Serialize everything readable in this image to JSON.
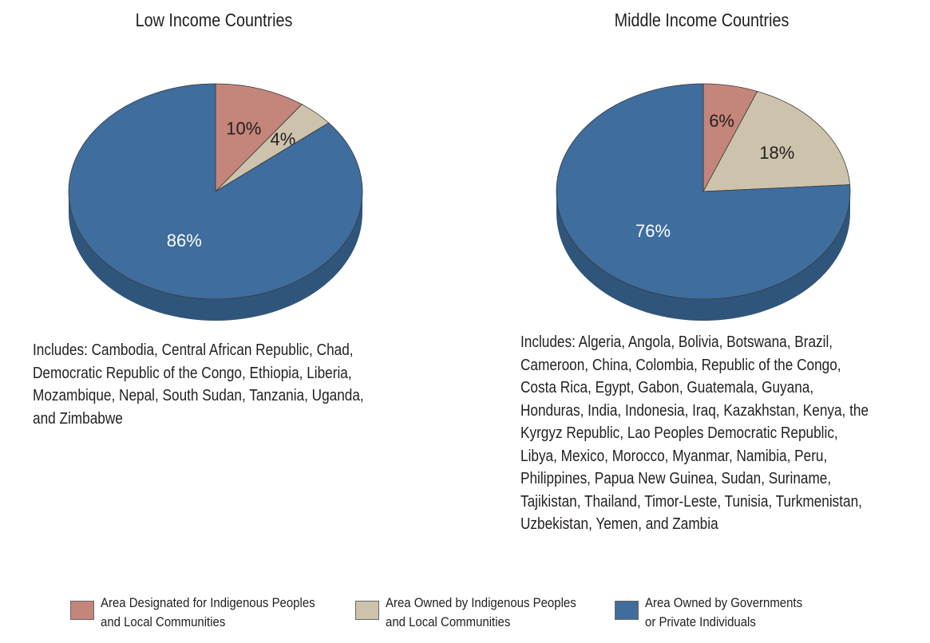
{
  "chart_data": [
    {
      "type": "pie",
      "title": "Low Income Countries",
      "categories": [
        "Area Designated for Indigenous Peoples and Local Communities",
        "Area Owned by Indigenous Peoples and Local Communities",
        "Area Owned by Governments or Private Individuals"
      ],
      "values": [
        10,
        4,
        86
      ],
      "labels": [
        "10%",
        "4%",
        "86%"
      ],
      "colors": [
        "#c4857a",
        "#cdc3ac",
        "#3e6d9e"
      ],
      "note": "Includes: Cambodia, Central African Republic, Chad, Democratic Republic of the Congo, Ethiopia, Liberia, Mozambique, Nepal, South Sudan, Tanzania, Uganda, and Zimbabwe"
    },
    {
      "type": "pie",
      "title": "Middle Income Countries",
      "categories": [
        "Area Designated for Indigenous Peoples and Local Communities",
        "Area Owned by Indigenous Peoples and Local Communities",
        "Area Owned by Governments or Private Individuals"
      ],
      "values": [
        6,
        18,
        76
      ],
      "labels": [
        "6%",
        "18%",
        "76%"
      ],
      "colors": [
        "#c4857a",
        "#cdc3ac",
        "#3e6d9e"
      ],
      "note": "Includes: Algeria, Angola, Bolivia, Botswana, Brazil, Cameroon, China, Colombia, Republic of the Congo, Costa Rica, Egypt, Gabon, Guatemala, Guyana, Honduras, India, Indonesia, Iraq, Kazakhstan, Kenya, the Kyrgyz Republic, Lao Peoples Democratic Republic, Libya, Mexico, Morocco, Myanmar, Namibia, Peru, Philippines, Papua New Guinea, Sudan, Suriname, Tajikistan, Thailand, Timor-Leste, Tunisia, Turkmenistan, Uzbekistan, Yemen, and Zambia"
    }
  ],
  "includes_lines": {
    "left": [
      "Includes: Cambodia, Central African Republic, Chad,",
      "Democratic Republic of the Congo, Ethiopia, Liberia,",
      "Mozambique, Nepal, South Sudan, Tanzania, Uganda,",
      "and Zimbabwe"
    ],
    "right": [
      "Includes: Algeria, Angola, Bolivia, Botswana, Brazil,",
      "Cameroon, China, Colombia, Republic of the Congo,",
      "Costa Rica, Egypt, Gabon, Guatemala, Guyana,",
      "Honduras, India, Indonesia, Iraq, Kazakhstan, Kenya, the",
      "Kyrgyz Republic, Lao Peoples Democratic Republic,",
      "Libya, Mexico, Morocco, Myanmar, Namibia, Peru,",
      "Philippines, Papua New Guinea, Sudan, Suriname,",
      "Tajikistan, Thailand, Timor-Leste, Tunisia, Turkmenistan,",
      "Uzbekistan, Yemen, and Zambia"
    ]
  },
  "legend": [
    {
      "label": "Area Designated for Indigenous Peoples\nand Local Communities",
      "color": "#c4857a"
    },
    {
      "label": "Area Owned by Indigenous Peoples\nand Local Communities",
      "color": "#cdc3ac"
    },
    {
      "label": "Area Owned by Governments\nor Private Individuals",
      "color": "#3e6d9e"
    }
  ]
}
